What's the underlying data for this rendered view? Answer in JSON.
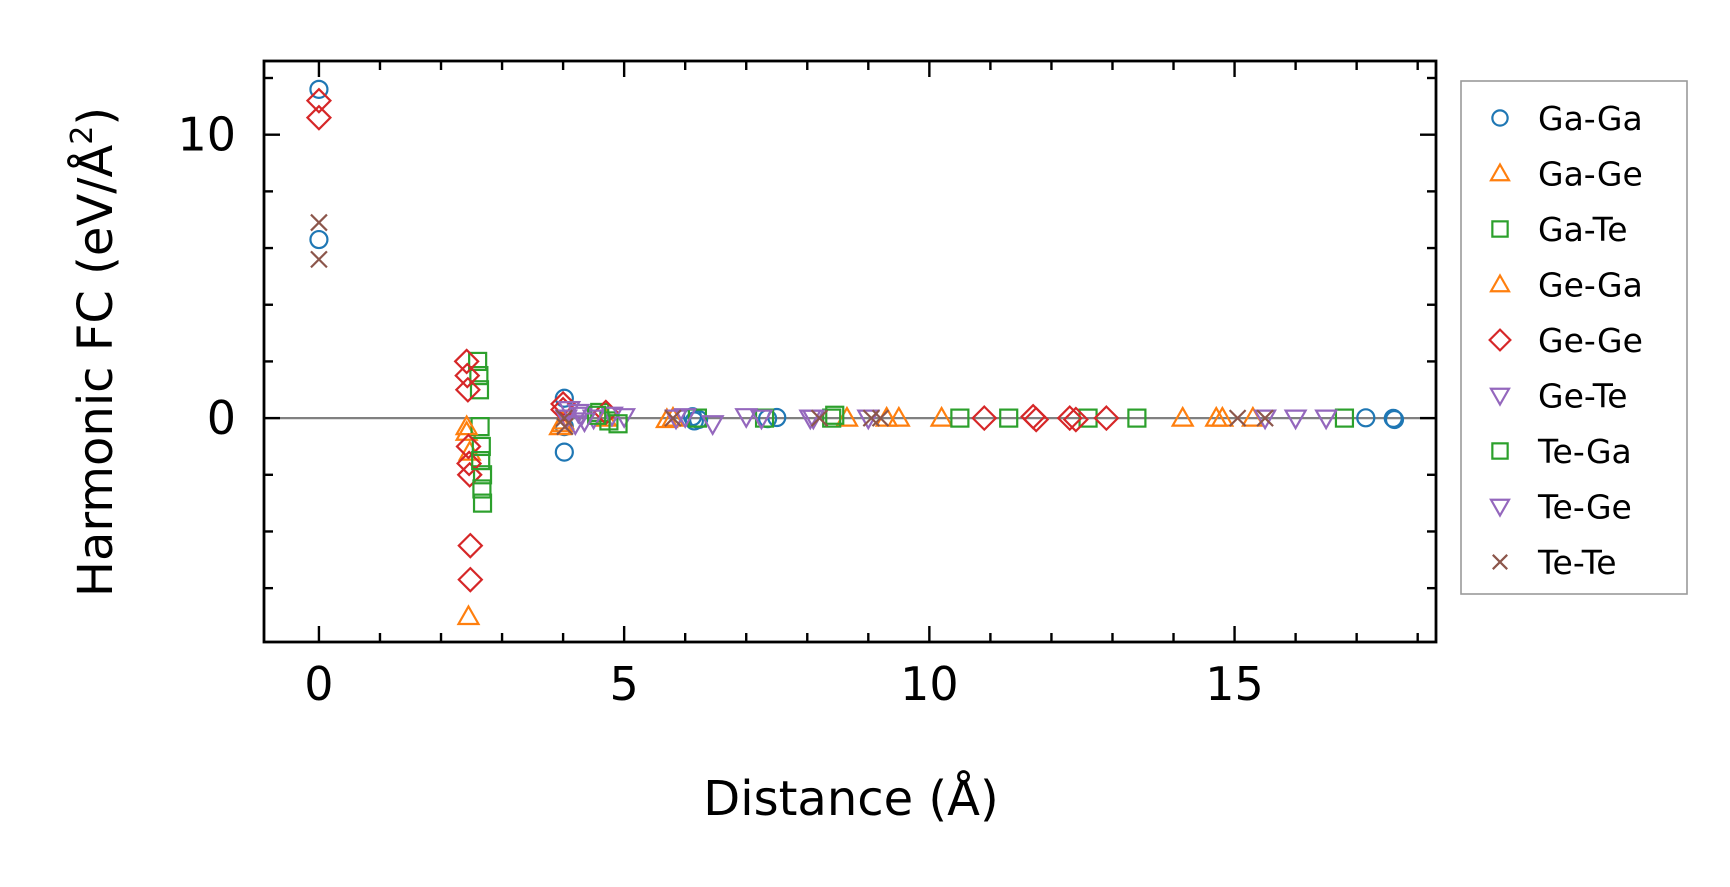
{
  "chart_data": {
    "type": "scatter",
    "title": "",
    "xlabel": "Distance (Å)",
    "ylabel_prefix": "Harmonic FC (eV/Å",
    "ylabel_exp": "2",
    "ylabel_suffix": ")",
    "xlim": [
      -0.9,
      18.3
    ],
    "ylim": [
      -7.9,
      12.6
    ],
    "xticks": [
      0,
      5,
      10,
      15
    ],
    "xtick_labels": [
      "0",
      "5",
      "10",
      "15"
    ],
    "xminor_step": 1,
    "yticks": [
      0,
      10
    ],
    "ytick_labels": [
      "0",
      "10"
    ],
    "yminor_step": 2,
    "zero_line": true,
    "grid": false,
    "legend_position": "outside-right",
    "series": [
      {
        "name": "Ga-Ga",
        "marker": "circle",
        "color": "#1f77b4",
        "x": [
          0,
          0,
          4.02,
          4.02,
          4.02,
          6.12,
          6.15,
          6.22,
          7.35,
          7.5,
          17.15,
          17.6,
          17.62
        ],
        "y": [
          11.6,
          6.3,
          0.7,
          -0.3,
          -1.2,
          0.05,
          -0.1,
          -0.05,
          -0.02,
          0.02,
          0.01,
          -0.01,
          -0.05
        ]
      },
      {
        "name": "Ga-Ge",
        "marker": "triangle-up",
        "color": "#ff7f0e",
        "x": [
          2.42,
          2.45,
          2.47,
          3.95,
          4.0,
          4.7,
          5.7,
          5.8,
          8.65,
          9.3,
          9.5,
          10.2,
          14.15,
          14.7,
          14.8,
          15.3
        ],
        "y": [
          -0.5,
          -7.0,
          -1.2,
          -0.3,
          -0.1,
          0.0,
          -0.05,
          0.0,
          0.0,
          0.0,
          0.0,
          0.0,
          0.0,
          0.0,
          0.0,
          0.0
        ]
      },
      {
        "name": "Ga-Te",
        "marker": "square",
        "color": "#2ca02c",
        "x": [
          2.6,
          2.62,
          2.63,
          2.64,
          2.66,
          2.68,
          4.6,
          4.75,
          6.2,
          7.3,
          8.4,
          8.45,
          10.5,
          11.3,
          12.6,
          13.4,
          16.8
        ],
        "y": [
          2.0,
          1.5,
          1.0,
          -0.3,
          -1.0,
          -2.0,
          0.2,
          -0.1,
          0.0,
          0.0,
          0.0,
          0.1,
          0.0,
          0.0,
          0.0,
          0.0,
          0.0
        ]
      },
      {
        "name": "Ge-Ga",
        "marker": "triangle-up",
        "color": "#ff7f0e",
        "x": [
          2.42,
          3.98
        ],
        "y": [
          -0.3,
          -0.2
        ]
      },
      {
        "name": "Ge-Ge",
        "marker": "diamond",
        "color": "#d62728",
        "x": [
          0,
          0,
          2.42,
          2.43,
          2.44,
          2.45,
          2.46,
          2.47,
          2.48,
          2.48,
          4.0,
          4.0,
          4.7,
          10.9,
          11.7,
          11.75,
          12.3,
          12.4,
          12.9
        ],
        "y": [
          11.2,
          10.6,
          2.0,
          1.5,
          1.0,
          -1.0,
          -1.6,
          -2.0,
          -4.5,
          -5.7,
          0.5,
          0.3,
          0.2,
          0.0,
          0.05,
          -0.05,
          0.0,
          -0.05,
          0.0
        ]
      },
      {
        "name": "Ge-Te",
        "marker": "triangle-down",
        "color": "#9467bd",
        "x": [
          4.1,
          4.2,
          4.3,
          4.5,
          4.8,
          5.0,
          5.85,
          6.0,
          6.45,
          7.0,
          7.25,
          8.05,
          8.1,
          9.0
        ],
        "y": [
          0.3,
          -0.2,
          0.1,
          0.0,
          0.1,
          0.05,
          0.0,
          0.05,
          -0.2,
          0.05,
          0.0,
          0.0,
          0.0,
          0.0
        ]
      },
      {
        "name": "Te-Ga",
        "marker": "square",
        "color": "#2ca02c",
        "x": [
          2.65,
          2.67,
          2.68,
          4.55,
          4.9
        ],
        "y": [
          -1.5,
          -2.5,
          -3.0,
          0.1,
          -0.2
        ]
      },
      {
        "name": "Te-Ge",
        "marker": "triangle-down",
        "color": "#9467bd",
        "x": [
          4.05,
          4.25,
          4.35,
          15.5,
          16.0,
          16.5
        ],
        "y": [
          0.0,
          0.2,
          -0.1,
          0.0,
          0.0,
          0.0
        ]
      },
      {
        "name": "Te-Te",
        "marker": "x",
        "color": "#8c564b",
        "x": [
          0,
          0,
          4.02,
          4.03,
          5.8,
          8.2,
          9.05,
          9.2,
          15.05,
          15.5
        ],
        "y": [
          6.9,
          5.6,
          0.0,
          -0.3,
          0.0,
          0.0,
          0.0,
          0.0,
          0.0,
          0.0
        ]
      }
    ]
  }
}
